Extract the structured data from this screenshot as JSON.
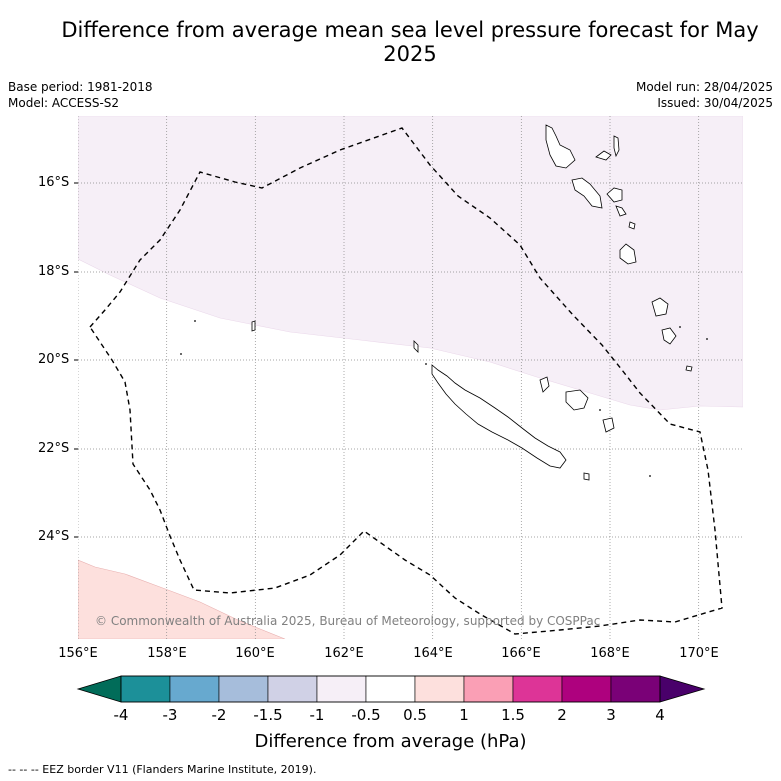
{
  "title": "Difference from average mean sea level pressure forecast for May 2025",
  "header": {
    "base_period": "Base period: 1981-2018",
    "model": "Model: ACCESS-S2",
    "model_run": "Model run: 28/04/2025",
    "issued": "Issued: 30/04/2025"
  },
  "map": {
    "lat_labels": [
      "16°S",
      "18°S",
      "20°S",
      "22°S",
      "24°S"
    ],
    "lon_labels": [
      "156°E",
      "158°E",
      "160°E",
      "162°E",
      "164°E",
      "166°E",
      "168°E",
      "170°E"
    ],
    "copyright": "© Commonwealth of Australia 2025, Bureau of Meteorology, supported by COSPPac"
  },
  "colorbar": {
    "labels": [
      "-4",
      "-3",
      "-2",
      "-1.5",
      "-1",
      "-0.5",
      "0.5",
      "1",
      "1.5",
      "2",
      "3",
      "4"
    ],
    "colors": [
      "#016c59",
      "#1c9099",
      "#67a9cf",
      "#a6bddb",
      "#d0d1e6",
      "#f6eff7",
      "#ffffff",
      "#fde0dd",
      "#fa9fb5",
      "#dd3497",
      "#ae017e",
      "#7a0177",
      "#49006a"
    ],
    "title": "Difference from average (hPa)"
  },
  "footer": "--  --  -- EEZ border V11 (Flanders Marine Institute, 2019)."
}
